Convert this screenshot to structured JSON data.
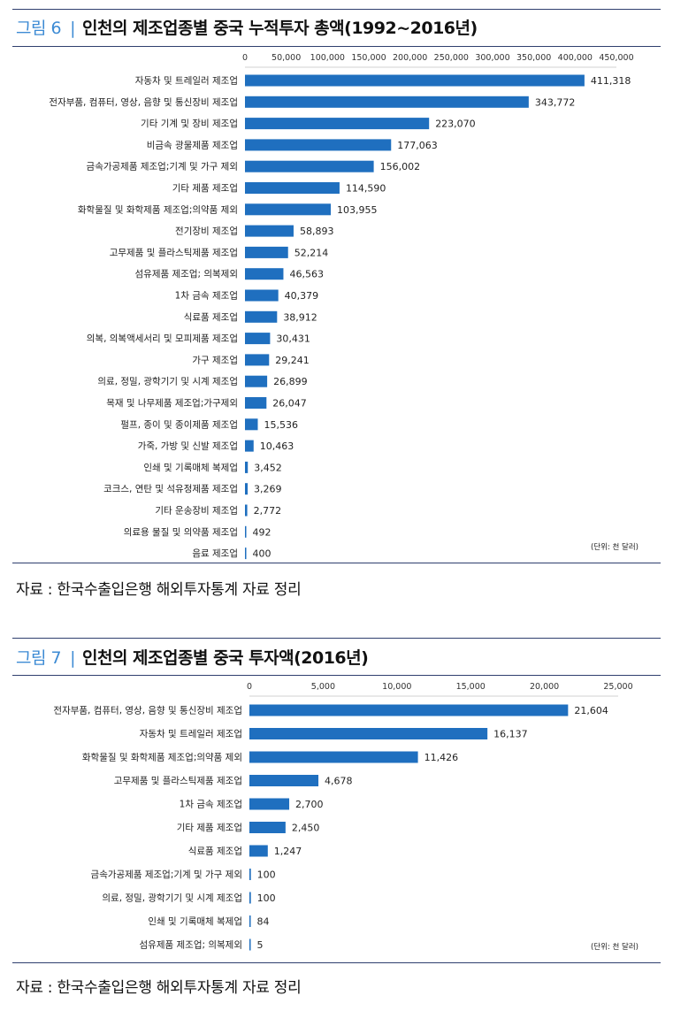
{
  "figures": [
    {
      "number": "그림 6",
      "separator": "|",
      "title": "인천의 제조업종별 중국 누적투자 총액(1992~2016년)",
      "source": "자료 : 한국수출입은행 해외투자통계 자료 정리"
    },
    {
      "number": "그림 7",
      "separator": "|",
      "title": "인천의 제조업종별 중국 투자액(2016년)",
      "source": "자료 : 한국수출입은행 해외투자통계 자료 정리"
    }
  ],
  "colors": {
    "bar": "#1f6fbf",
    "rule": "#2f3f6e",
    "accent": "#3d8bd4"
  },
  "chart_data": [
    {
      "type": "bar",
      "orientation": "horizontal",
      "title": "인천의 제조업종별 중국 누적투자 총액(1992~2016년)",
      "unit_note": "(단위: 천 달러)",
      "xlim": [
        0,
        450000
      ],
      "x_ticks": [
        "0",
        "50,000",
        "100,000",
        "150,000",
        "200,000",
        "250,000",
        "300,000",
        "350,000",
        "400,000",
        "450,000"
      ],
      "x_tick_values": [
        0,
        50000,
        100000,
        150000,
        200000,
        250000,
        300000,
        350000,
        400000,
        450000
      ],
      "grid": false,
      "categories": [
        "자동차 및 트레일러 제조업",
        "전자부품, 컴퓨터, 영상, 음향 및 통신장비 제조업",
        "기타 기계 및 장비 제조업",
        "비금속 광물제품 제조업",
        "금속가공제품 제조업;기계 및 가구 제외",
        "기타 제품 제조업",
        "화학물질 및 화학제품 제조업;의약품 제외",
        "전기장비 제조업",
        "고무제품 및 플라스틱제품 제조업",
        "섬유제품 제조업; 의복제외",
        "1차 금속 제조업",
        "식료품 제조업",
        "의복, 의복액세서리 및 모피제품 제조업",
        "가구 제조업",
        "의료, 정밀, 광학기기 및 시계 제조업",
        "목재 및 나무제품 제조업;가구제외",
        "펄프, 종이 및 종이제품 제조업",
        "가죽, 가방 및 신발 제조업",
        "인쇄 및 기록매체 복제업",
        "코크스, 연탄 및 석유정제품 제조업",
        "기타 운송장비 제조업",
        "의료용 물질 및 의약품 제조업",
        "음료 제조업"
      ],
      "values": [
        411318,
        343772,
        223070,
        177063,
        156002,
        114590,
        103955,
        58893,
        52214,
        46563,
        40379,
        38912,
        30431,
        29241,
        26899,
        26047,
        15536,
        10463,
        3452,
        3269,
        2772,
        492,
        400
      ],
      "value_labels": [
        "411,318",
        "343,772",
        "223,070",
        "177,063",
        "156,002",
        "114,590",
        "103,955",
        "58,893",
        "52,214",
        "46,563",
        "40,379",
        "38,912",
        "30,431",
        "29,241",
        "26,899",
        "26,047",
        "15,536",
        "10,463",
        "3,452",
        "3,269",
        "2,772",
        "492",
        "400"
      ]
    },
    {
      "type": "bar",
      "orientation": "horizontal",
      "title": "인천의 제조업종별 중국 투자액(2016년)",
      "unit_note": "(단위: 천 달러)",
      "xlim": [
        0,
        25000
      ],
      "x_ticks": [
        "0",
        "5,000",
        "10,000",
        "15,000",
        "20,000",
        "25,000"
      ],
      "x_tick_values": [
        0,
        5000,
        10000,
        15000,
        20000,
        25000
      ],
      "grid": false,
      "categories": [
        "전자부품, 컴퓨터, 영상, 음향 및 통신장비 제조업",
        "자동차 및 트레일러 제조업",
        "화학물질 및 화학제품 제조업;의약품 제외",
        "고무제품 및 플라스틱제품 제조업",
        "1차 금속 제조업",
        "기타 제품 제조업",
        "식료품 제조업",
        "금속가공제품 제조업;기계 및 가구 제외",
        "의료, 정밀, 광학기기 및 시계 제조업",
        "인쇄 및 기록매체 복제업",
        "섬유제품 제조업; 의복제외"
      ],
      "values": [
        21604,
        16137,
        11426,
        4678,
        2700,
        2450,
        1247,
        100,
        100,
        84,
        5
      ],
      "value_labels": [
        "21,604",
        "16,137",
        "11,426",
        "4,678",
        "2,700",
        "2,450",
        "1,247",
        "100",
        "100",
        "84",
        "5"
      ]
    }
  ]
}
